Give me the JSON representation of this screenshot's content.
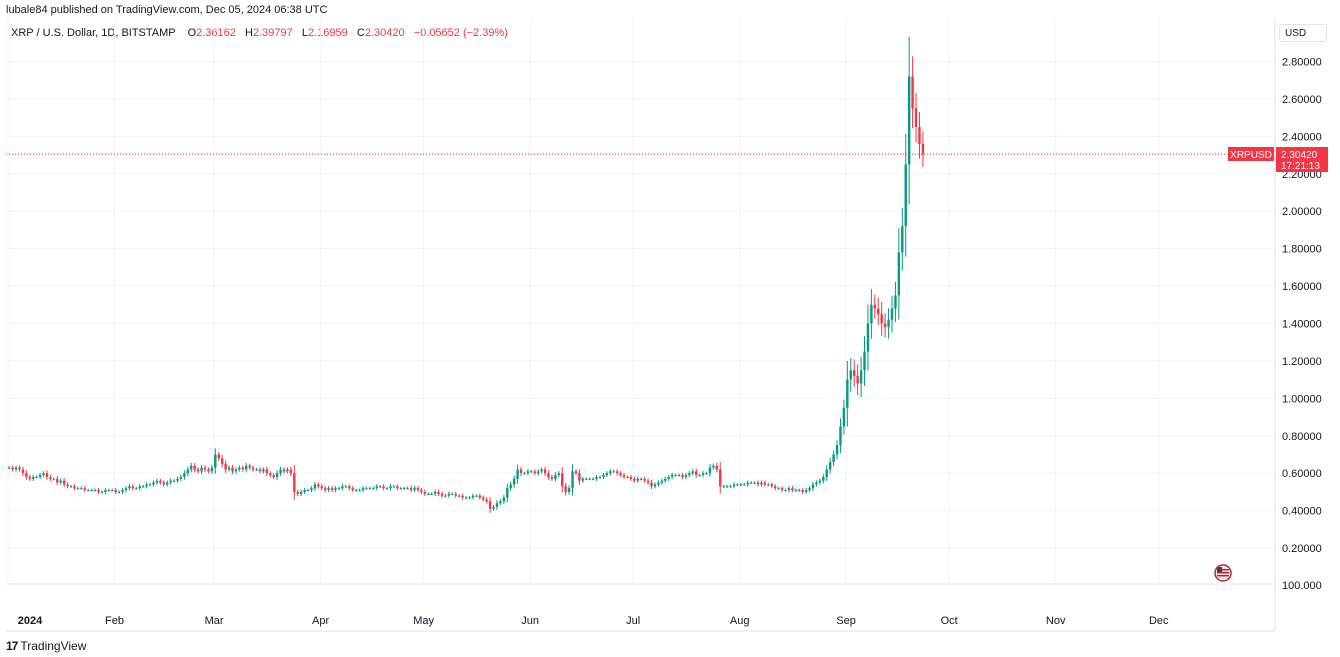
{
  "header": {
    "published_line": "lubale84 published on TradingView.com, Dec 05, 2024 06:38 UTC",
    "symbol_title": "XRP / U.S. Dollar, 1D, BITSTAMP",
    "ohlc": {
      "o_label": "O",
      "o_value": "2.36162",
      "h_label": "H",
      "h_value": "2.39797",
      "l_label": "L",
      "l_value": "2.16959",
      "c_label": "C",
      "c_value": "2.30420",
      "change": "−0.05652 (−2.39%)"
    }
  },
  "currency_button": "USD",
  "price_tag": {
    "symbol": "XRPUSD",
    "price": "2.30420",
    "countdown": "17:21:13"
  },
  "footer": {
    "logo_mark": "17",
    "logo_text": "TradingView"
  },
  "colors": {
    "up": "#089981",
    "down": "#f23645",
    "grid": "#f0f3fa",
    "axis_text": "#131722"
  },
  "chart_data": {
    "type": "candlestick",
    "symbol": "XRPUSD",
    "interval": "1D",
    "exchange": "BITSTAMP",
    "y_ticks": [
      "2.80000",
      "2.60000",
      "2.40000",
      "2.20000",
      "2.00000",
      "1.80000",
      "1.60000",
      "1.40000",
      "1.20000",
      "1.00000",
      "0.80000",
      "0.60000",
      "0.40000",
      "0.20000"
    ],
    "bottom_label": "100.000",
    "x_ticks": [
      "2024",
      "Feb",
      "Mar",
      "Apr",
      "May",
      "Jun",
      "Jul",
      "Aug",
      "Sep",
      "Oct",
      "Nov",
      "Dec"
    ],
    "ylim": [
      0.0,
      2.95
    ],
    "last_price": 2.3042,
    "grid": true,
    "closes": [
      0.63,
      0.62,
      0.63,
      0.62,
      0.6,
      0.58,
      0.57,
      0.58,
      0.58,
      0.59,
      0.6,
      0.58,
      0.57,
      0.57,
      0.55,
      0.56,
      0.54,
      0.53,
      0.53,
      0.52,
      0.52,
      0.52,
      0.51,
      0.51,
      0.51,
      0.51,
      0.5,
      0.5,
      0.51,
      0.51,
      0.51,
      0.5,
      0.5,
      0.51,
      0.52,
      0.53,
      0.52,
      0.52,
      0.53,
      0.53,
      0.54,
      0.54,
      0.55,
      0.56,
      0.55,
      0.54,
      0.55,
      0.56,
      0.56,
      0.57,
      0.58,
      0.6,
      0.62,
      0.64,
      0.62,
      0.61,
      0.63,
      0.62,
      0.61,
      0.63,
      0.7,
      0.68,
      0.65,
      0.62,
      0.63,
      0.61,
      0.62,
      0.63,
      0.62,
      0.64,
      0.63,
      0.62,
      0.62,
      0.61,
      0.62,
      0.6,
      0.59,
      0.58,
      0.6,
      0.62,
      0.61,
      0.62,
      0.6,
      0.5,
      0.49,
      0.5,
      0.51,
      0.51,
      0.52,
      0.54,
      0.53,
      0.52,
      0.51,
      0.52,
      0.51,
      0.52,
      0.52,
      0.53,
      0.53,
      0.52,
      0.51,
      0.51,
      0.51,
      0.52,
      0.52,
      0.52,
      0.52,
      0.53,
      0.53,
      0.52,
      0.52,
      0.53,
      0.53,
      0.52,
      0.52,
      0.52,
      0.52,
      0.51,
      0.52,
      0.51,
      0.5,
      0.49,
      0.49,
      0.49,
      0.5,
      0.49,
      0.48,
      0.48,
      0.49,
      0.49,
      0.48,
      0.48,
      0.47,
      0.47,
      0.47,
      0.48,
      0.48,
      0.47,
      0.46,
      0.45,
      0.41,
      0.42,
      0.44,
      0.45,
      0.47,
      0.52,
      0.54,
      0.57,
      0.62,
      0.6,
      0.6,
      0.61,
      0.61,
      0.6,
      0.61,
      0.62,
      0.6,
      0.58,
      0.57,
      0.59,
      0.6,
      0.53,
      0.5,
      0.52,
      0.61,
      0.6,
      0.56,
      0.57,
      0.57,
      0.57,
      0.57,
      0.58,
      0.58,
      0.59,
      0.6,
      0.61,
      0.61,
      0.6,
      0.59,
      0.58,
      0.58,
      0.57,
      0.56,
      0.57,
      0.57,
      0.56,
      0.55,
      0.53,
      0.54,
      0.55,
      0.56,
      0.57,
      0.58,
      0.59,
      0.59,
      0.59,
      0.58,
      0.59,
      0.6,
      0.61,
      0.59,
      0.59,
      0.6,
      0.6,
      0.63,
      0.64,
      0.62,
      0.53,
      0.53,
      0.53,
      0.53,
      0.54,
      0.54,
      0.54,
      0.54,
      0.55,
      0.55,
      0.55,
      0.54,
      0.55,
      0.54,
      0.54,
      0.53,
      0.52,
      0.52,
      0.51,
      0.51,
      0.52,
      0.51,
      0.51,
      0.51,
      0.5,
      0.51,
      0.52,
      0.54,
      0.55,
      0.56,
      0.58,
      0.62,
      0.66,
      0.7,
      0.75,
      0.85,
      0.95,
      1.1,
      1.15,
      1.12,
      1.08,
      1.15,
      1.25,
      1.4,
      1.5,
      1.48,
      1.45,
      1.4,
      1.38,
      1.42,
      1.48,
      1.55,
      1.78,
      1.92,
      2.25,
      2.72,
      2.55,
      2.45,
      2.36,
      2.3042
    ]
  }
}
